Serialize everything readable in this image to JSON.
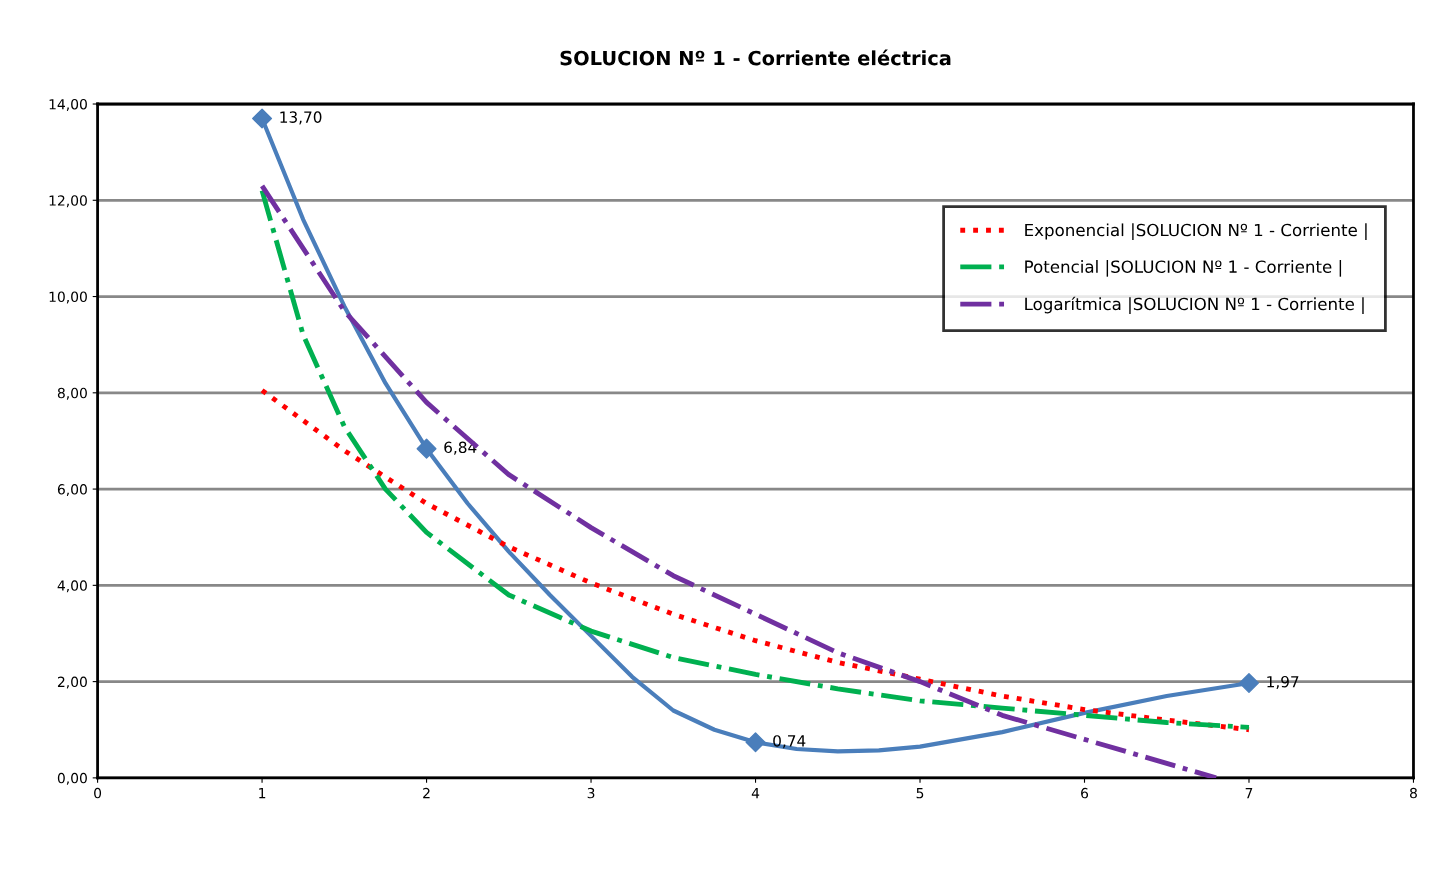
{
  "chart_data": {
    "type": "line",
    "title": "SOLUCION Nº 1 - Corriente eléctrica",
    "xlim": [
      0,
      8
    ],
    "xticks": [
      0,
      1,
      2,
      3,
      4,
      5,
      6,
      7,
      8
    ],
    "ylim": [
      0,
      14
    ],
    "yticks": [
      {
        "value": 0,
        "label": "0,00"
      },
      {
        "value": 2,
        "label": "2,00"
      },
      {
        "value": 4,
        "label": "4,00"
      },
      {
        "value": 6,
        "label": "6,00"
      },
      {
        "value": 8,
        "label": "8,00"
      },
      {
        "value": 10,
        "label": "10,00"
      },
      {
        "value": 12,
        "label": "12,00"
      },
      {
        "value": 14,
        "label": "14,00"
      }
    ],
    "grid": "y",
    "legend": "top right",
    "series": [
      {
        "color": "#4a7ebb",
        "marker": "none",
        "line_style": "solid",
        "x": [
          1,
          1.25,
          1.5,
          1.75,
          2,
          2.25,
          2.5,
          2.75,
          3,
          3.25,
          3.5,
          3.75,
          4,
          4.25,
          4.5,
          4.75,
          5,
          5.5,
          6,
          6.5,
          7
        ],
        "values": [
          13.7,
          11.6,
          9.8,
          8.2,
          6.84,
          5.7,
          4.7,
          3.8,
          2.95,
          2.1,
          1.4,
          1.0,
          0.74,
          0.6,
          0.55,
          0.57,
          0.65,
          0.95,
          1.35,
          1.7,
          1.97
        ]
      },
      {
        "type": "scatter",
        "color": "#4a7ebb",
        "marker": "diamond",
        "x": [
          1,
          2,
          4,
          7
        ],
        "values": [
          13.7,
          6.84,
          0.74,
          1.97
        ],
        "value_labels": [
          "13,70",
          "6,84",
          "0,74",
          "1,97"
        ]
      },
      {
        "name": "Exponencial |SOLUCION Nº 1 - Corriente |",
        "color": "#ff0000",
        "marker": "none",
        "line_style": "dotted",
        "x": [
          1,
          1.5,
          2,
          2.5,
          3,
          3.5,
          4,
          4.5,
          5,
          5.5,
          6,
          6.5,
          7
        ],
        "values": [
          8.05,
          6.8,
          5.7,
          4.8,
          4.05,
          3.4,
          2.85,
          2.4,
          2.05,
          1.7,
          1.42,
          1.2,
          1.0
        ]
      },
      {
        "name": "Potencial |SOLUCION Nº 1 - Corriente |",
        "color": "#00b050",
        "marker": "none",
        "line_style": "dashdot",
        "x": [
          1,
          1.25,
          1.5,
          1.75,
          2,
          2.5,
          3,
          3.5,
          4,
          4.5,
          5,
          5.5,
          6,
          6.5,
          7
        ],
        "values": [
          12.2,
          9.2,
          7.3,
          6.0,
          5.1,
          3.8,
          3.05,
          2.5,
          2.15,
          1.85,
          1.6,
          1.45,
          1.3,
          1.15,
          1.05
        ]
      },
      {
        "name": "Logarítmica |SOLUCION Nº 1 - Corriente |",
        "color": "#7030a0",
        "marker": "none",
        "line_style": "dashdot",
        "x": [
          1,
          1.5,
          2,
          2.5,
          3,
          3.5,
          4,
          4.5,
          5,
          5.5,
          6,
          6.5,
          6.8
        ],
        "values": [
          12.3,
          9.7,
          7.8,
          6.3,
          5.2,
          4.2,
          3.4,
          2.6,
          2.0,
          1.3,
          0.8,
          0.3,
          0
        ]
      }
    ]
  }
}
